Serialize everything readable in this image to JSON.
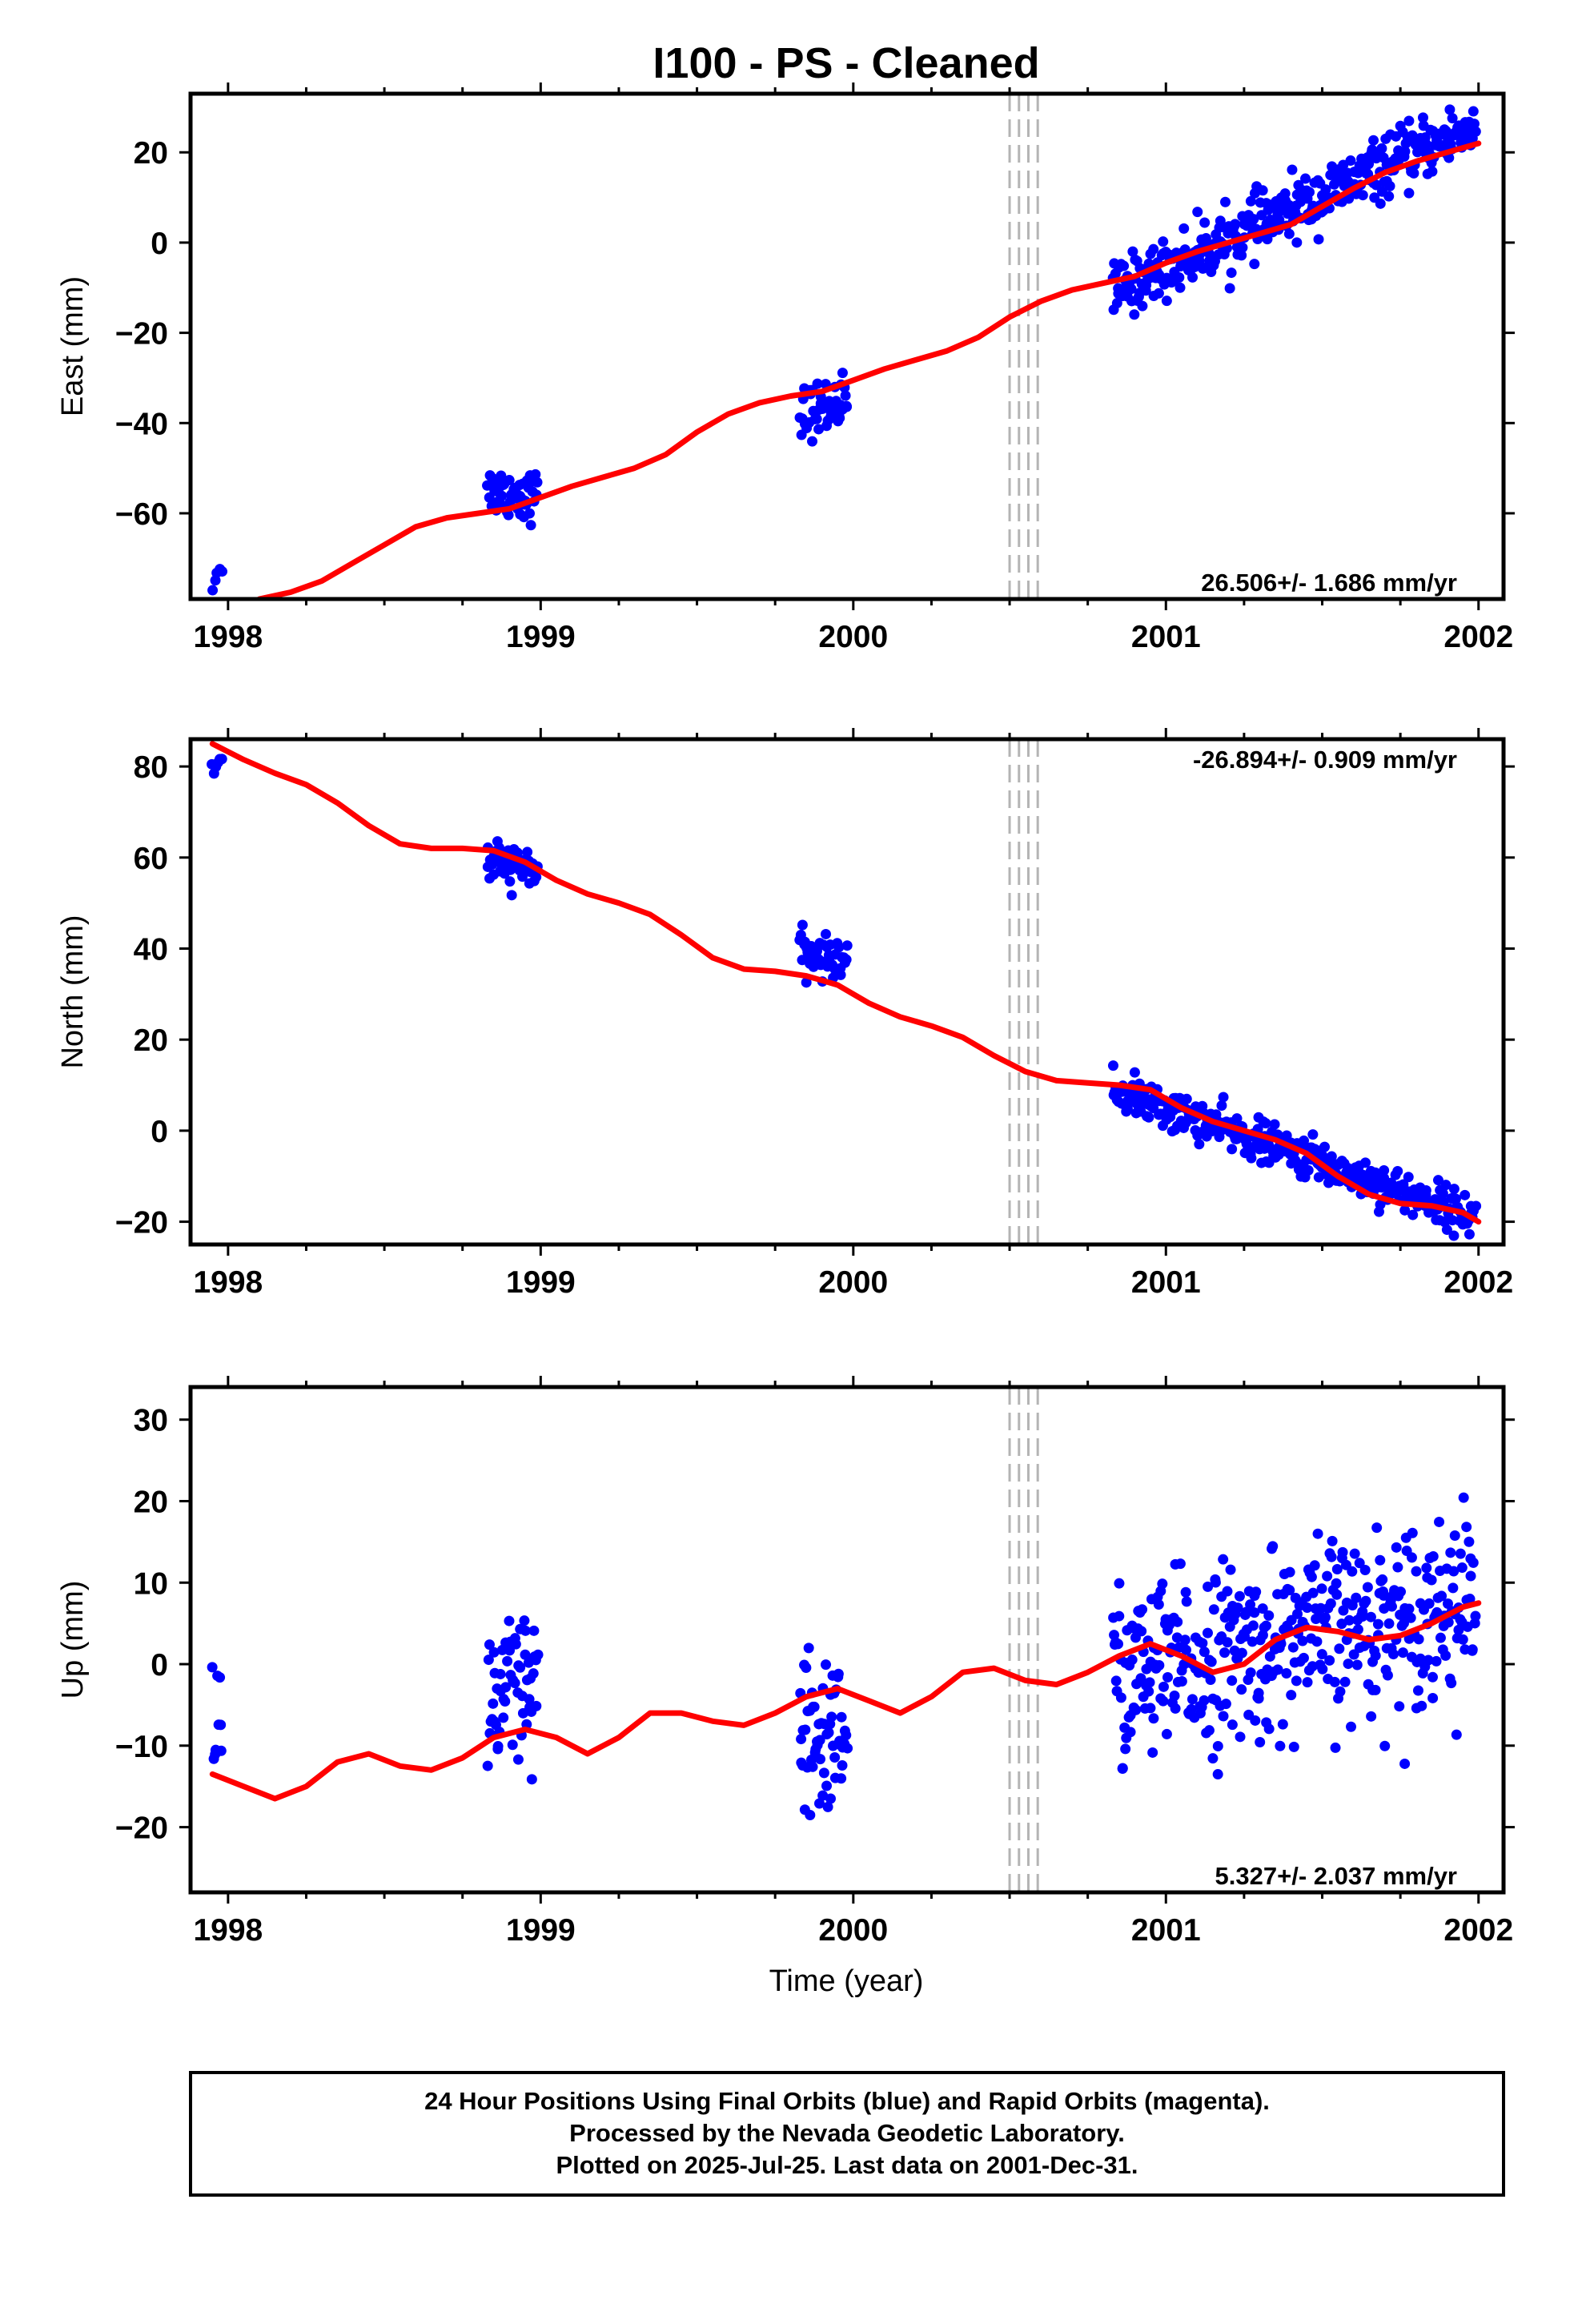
{
  "title": "I100  - PS - Cleaned",
  "xlabel": "Time (year)",
  "x_ticks": [
    "1998",
    "1999",
    "2000",
    "2001",
    "2002"
  ],
  "footer": {
    "line1": "24 Hour Positions Using Final Orbits (blue) and Rapid Orbits (magenta).",
    "line2": "Processed by the Nevada Geodetic Laboratory.",
    "line3": "Plotted on 2025-Jul-25. Last data on 2001-Dec-31."
  },
  "colors": {
    "data": "#0000ff",
    "model": "#ff0000",
    "breaks": "#b4b4b4",
    "frame": "#000000"
  },
  "chart_data": [
    {
      "type": "scatter",
      "ylabel": "East (mm)",
      "rate_text": "26.506+/- 1.686 mm/yr",
      "xlim": [
        1997.88,
        2002.08
      ],
      "ylim": [
        -79,
        33
      ],
      "y_ticks": [
        20,
        0,
        -20,
        -40,
        -60
      ],
      "y_tick_labels": [
        "20",
        "0",
        "−20",
        "−40",
        "−60"
      ],
      "break_lines": [
        2000.5,
        2000.53,
        2000.56,
        2000.59
      ],
      "model": {
        "x": [
          1998.1,
          1998.2,
          1998.3,
          1998.4,
          1998.5,
          1998.6,
          1998.7,
          1998.8,
          1998.9,
          1999.0,
          1999.1,
          1999.2,
          1999.3,
          1999.4,
          1999.5,
          1999.6,
          1999.7,
          1999.8,
          1999.9,
          2000.0,
          2000.1,
          2000.2,
          2000.3,
          2000.4,
          2000.5,
          2000.6,
          2000.7,
          2000.8,
          2000.9,
          2001.0,
          2001.1,
          2001.2,
          2001.3,
          2001.4,
          2001.5,
          2001.6,
          2001.7,
          2001.8,
          2001.9,
          2002.0
        ],
        "y": [
          -79,
          -77.5,
          -75,
          -71,
          -67,
          -63,
          -61,
          -60,
          -59,
          -56.5,
          -54,
          -52,
          -50,
          -47,
          -42,
          -38,
          -35.5,
          -34,
          -33,
          -30.5,
          -28,
          -26,
          -24,
          -21,
          -16.5,
          -13,
          -10.5,
          -9,
          -7.5,
          -4.5,
          -2,
          0,
          2,
          4,
          8,
          12,
          15.5,
          18,
          20,
          22
        ]
      },
      "clusters": [
        {
          "x0": 1997.95,
          "x1": 1997.98,
          "n": 5,
          "y0": -75.5,
          "y1": -70.5,
          "spread": 1.5
        },
        {
          "x0": 1998.83,
          "x1": 1998.99,
          "n": 55,
          "y0": -55,
          "y1": -56,
          "spread": 2.8
        },
        {
          "x0": 1999.83,
          "x1": 1999.98,
          "n": 50,
          "y0": -38,
          "y1": -35,
          "spread": 3
        },
        {
          "x0": 2000.83,
          "x1": 2001.99,
          "n": 380,
          "y0": -11,
          "y1": 26,
          "spread": 3.2
        }
      ]
    },
    {
      "type": "scatter",
      "ylabel": "North (mm)",
      "rate_text": "-26.894+/- 0.909 mm/yr",
      "xlim": [
        1997.88,
        2002.08
      ],
      "ylim": [
        -25,
        86
      ],
      "y_ticks": [
        80,
        60,
        40,
        20,
        0,
        -20
      ],
      "y_tick_labels": [
        "80",
        "60",
        "40",
        "20",
        "0",
        "−20"
      ],
      "break_lines": [
        2000.5,
        2000.53,
        2000.56,
        2000.59
      ],
      "model": {
        "x": [
          1997.95,
          1998.05,
          1998.15,
          1998.25,
          1998.35,
          1998.45,
          1998.55,
          1998.65,
          1998.75,
          1998.85,
          1998.95,
          1999.05,
          1999.15,
          1999.25,
          1999.35,
          1999.45,
          1999.55,
          1999.65,
          1999.75,
          1999.85,
          1999.95,
          2000.05,
          2000.15,
          2000.25,
          2000.35,
          2000.45,
          2000.55,
          2000.65,
          2000.75,
          2000.85,
          2000.95,
          2001.05,
          2001.15,
          2001.25,
          2001.35,
          2001.45,
          2001.55,
          2001.65,
          2001.75,
          2001.85,
          2001.95,
          2002.0
        ],
        "y": [
          85,
          81.5,
          78.5,
          76,
          72,
          67,
          63,
          62,
          62,
          61.5,
          59,
          55,
          52,
          50,
          47.5,
          43,
          38,
          35.5,
          35,
          34,
          32,
          28,
          25,
          23,
          20.5,
          16.5,
          13,
          11,
          10.5,
          10,
          9,
          5,
          2,
          0,
          -2,
          -5,
          -10,
          -14,
          -16,
          -16.5,
          -18,
          -20
        ]
      },
      "clusters": [
        {
          "x0": 1997.95,
          "x1": 1997.98,
          "n": 6,
          "y0": 78.5,
          "y1": 82.5,
          "spread": 1.6
        },
        {
          "x0": 1998.83,
          "x1": 1998.99,
          "n": 55,
          "y0": 59,
          "y1": 57.5,
          "spread": 2.3
        },
        {
          "x0": 1999.83,
          "x1": 1999.98,
          "n": 50,
          "y0": 38.5,
          "y1": 37.5,
          "spread": 2.2
        },
        {
          "x0": 2000.83,
          "x1": 2001.99,
          "n": 380,
          "y0": 9,
          "y1": -19,
          "spread": 2.2
        }
      ]
    },
    {
      "type": "scatter",
      "ylabel": "Up (mm)",
      "rate_text": "5.327+/- 2.037 mm/yr",
      "xlim": [
        1997.88,
        2002.08
      ],
      "ylim": [
        -28,
        34
      ],
      "y_ticks": [
        30,
        20,
        10,
        0,
        -10,
        -20
      ],
      "y_tick_labels": [
        "30",
        "20",
        "10",
        "0",
        "−10",
        "−20"
      ],
      "break_lines": [
        2000.5,
        2000.53,
        2000.56,
        2000.59
      ],
      "model": {
        "x": [
          1997.95,
          1998.05,
          1998.15,
          1998.25,
          1998.35,
          1998.45,
          1998.55,
          1998.65,
          1998.75,
          1998.85,
          1998.95,
          1999.05,
          1999.15,
          1999.25,
          1999.35,
          1999.45,
          1999.55,
          1999.65,
          1999.75,
          1999.85,
          1999.95,
          2000.05,
          2000.15,
          2000.25,
          2000.35,
          2000.45,
          2000.55,
          2000.65,
          2000.75,
          2000.85,
          2000.95,
          2001.05,
          2001.15,
          2001.25,
          2001.35,
          2001.45,
          2001.55,
          2001.65,
          2001.75,
          2001.85,
          2001.95,
          2002.0
        ],
        "y": [
          -13.5,
          -15,
          -16.5,
          -15,
          -12,
          -11,
          -12.5,
          -13,
          -11.5,
          -9,
          -8,
          -9,
          -11,
          -9,
          -6,
          -6,
          -7,
          -7.5,
          -6,
          -4,
          -3,
          -4.5,
          -6,
          -4,
          -1,
          -0.5,
          -2,
          -2.5,
          -1,
          1,
          2.5,
          1,
          -1,
          0,
          3,
          4.5,
          4,
          3,
          3.5,
          5,
          7,
          7.5
        ]
      },
      "clusters": [
        {
          "x0": 1997.95,
          "x1": 1997.98,
          "n": 9,
          "y0": -6,
          "y1": -6,
          "spread": 4.5
        },
        {
          "x0": 1998.83,
          "x1": 1998.99,
          "n": 60,
          "y0": -5,
          "y1": -4,
          "spread": 5.5
        },
        {
          "x0": 1999.83,
          "x1": 1999.98,
          "n": 60,
          "y0": -11,
          "y1": -7,
          "spread": 5.5
        },
        {
          "x0": 2000.83,
          "x1": 2001.99,
          "n": 420,
          "y0": -2,
          "y1": 8,
          "spread": 5.5
        }
      ]
    }
  ]
}
